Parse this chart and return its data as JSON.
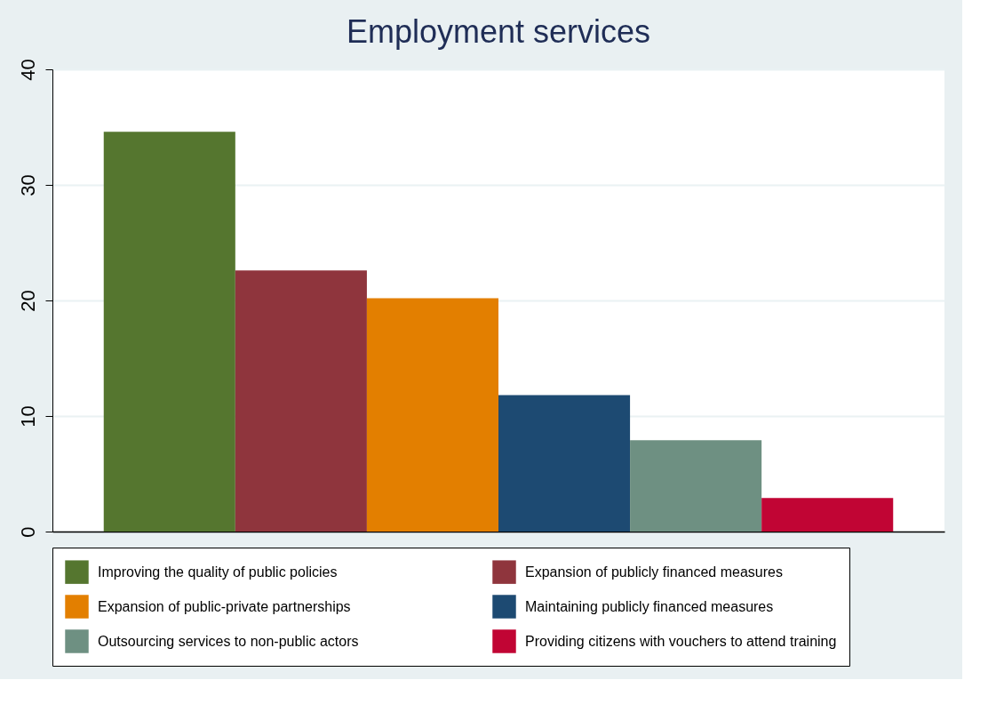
{
  "chart_data": {
    "type": "bar",
    "title": "Employment services",
    "categories": [
      null
    ],
    "series": [
      {
        "name": "Improving the quality of public policies",
        "color": "#55762f",
        "values": [
          34.6
        ]
      },
      {
        "name": "Expansion of publicly financed measures",
        "color": "#8f353d",
        "values": [
          22.6
        ]
      },
      {
        "name": "Expansion of public-private partnerships",
        "color": "#e37f00",
        "values": [
          20.2
        ]
      },
      {
        "name": "Maintaining publicly financed measures",
        "color": "#1d4a72",
        "values": [
          11.8
        ]
      },
      {
        "name": "Outsourcing services to non-public actors",
        "color": "#6e9082",
        "values": [
          7.9
        ]
      },
      {
        "name": "Providing citizens with vouchers to attend training",
        "color": "#c10534",
        "values": [
          2.9
        ]
      }
    ],
    "ylim": [
      0,
      40
    ],
    "yticks": [
      0,
      10,
      20,
      30,
      40
    ],
    "grid": "y",
    "legend": "bottom"
  }
}
